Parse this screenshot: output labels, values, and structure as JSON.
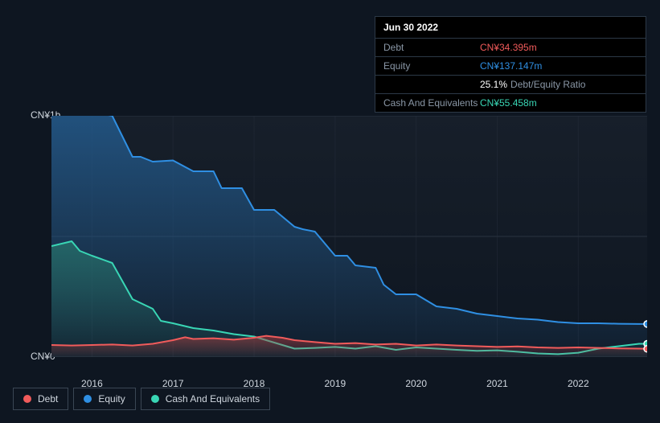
{
  "panel": {
    "date": "Jun 30 2022",
    "rows": [
      {
        "label": "Debt",
        "value": "CN¥34.395m",
        "color": "#f15b5b"
      },
      {
        "label": "Equity",
        "value": "CN¥137.147m",
        "color": "#2f8fe3"
      },
      {
        "label": "",
        "value": "25.1%",
        "suffix": "Debt/Equity Ratio",
        "color": "#ffffff"
      },
      {
        "label": "Cash And Equivalents",
        "value": "CN¥55.458m",
        "color": "#39d6b5"
      }
    ]
  },
  "chart": {
    "type": "area",
    "ylim": [
      0,
      1000
    ],
    "y_axis": [
      {
        "v": 1000,
        "label": "CN¥1b"
      },
      {
        "v": 0,
        "label": "CN¥0"
      }
    ],
    "background": "#0e1621",
    "plot_bg_top": "#171f2a",
    "plot_bg_bottom": "#0e1621",
    "grid_color": "#2a3340",
    "x_axis": [
      "2016",
      "2017",
      "2018",
      "2019",
      "2020",
      "2021",
      "2022"
    ],
    "x_range": [
      2015.5,
      2022.85
    ],
    "series": {
      "equity": {
        "color": "#2f8fe3",
        "fill_top": "rgba(35,90,140,0.85)",
        "fill_bottom": "rgba(35,90,140,0.10)",
        "points": [
          [
            2015.5,
            1010
          ],
          [
            2016.1,
            1010
          ],
          [
            2016.25,
            1000
          ],
          [
            2016.5,
            830
          ],
          [
            2016.6,
            830
          ],
          [
            2016.75,
            810
          ],
          [
            2017.0,
            815
          ],
          [
            2017.25,
            770
          ],
          [
            2017.5,
            770
          ],
          [
            2017.6,
            700
          ],
          [
            2017.85,
            700
          ],
          [
            2018.0,
            610
          ],
          [
            2018.25,
            610
          ],
          [
            2018.5,
            540
          ],
          [
            2018.6,
            530
          ],
          [
            2018.75,
            520
          ],
          [
            2019.0,
            420
          ],
          [
            2019.15,
            420
          ],
          [
            2019.25,
            380
          ],
          [
            2019.5,
            370
          ],
          [
            2019.6,
            300
          ],
          [
            2019.75,
            260
          ],
          [
            2020.0,
            260
          ],
          [
            2020.25,
            210
          ],
          [
            2020.5,
            200
          ],
          [
            2020.75,
            180
          ],
          [
            2021.0,
            170
          ],
          [
            2021.25,
            160
          ],
          [
            2021.5,
            155
          ],
          [
            2021.75,
            145
          ],
          [
            2022.0,
            140
          ],
          [
            2022.25,
            140
          ],
          [
            2022.5,
            138
          ],
          [
            2022.75,
            137
          ],
          [
            2022.85,
            137
          ]
        ]
      },
      "cash": {
        "color": "#39d6b5",
        "fill_top": "rgba(40,120,110,0.70)",
        "fill_bottom": "rgba(40,120,110,0.08)",
        "points": [
          [
            2015.5,
            460
          ],
          [
            2015.75,
            480
          ],
          [
            2015.85,
            440
          ],
          [
            2016.0,
            420
          ],
          [
            2016.25,
            390
          ],
          [
            2016.5,
            240
          ],
          [
            2016.75,
            200
          ],
          [
            2016.85,
            150
          ],
          [
            2017.0,
            140
          ],
          [
            2017.25,
            120
          ],
          [
            2017.5,
            110
          ],
          [
            2017.75,
            95
          ],
          [
            2018.0,
            85
          ],
          [
            2018.25,
            60
          ],
          [
            2018.5,
            35
          ],
          [
            2018.75,
            38
          ],
          [
            2019.0,
            42
          ],
          [
            2019.25,
            35
          ],
          [
            2019.5,
            45
          ],
          [
            2019.75,
            30
          ],
          [
            2020.0,
            40
          ],
          [
            2020.25,
            35
          ],
          [
            2020.5,
            30
          ],
          [
            2020.75,
            26
          ],
          [
            2021.0,
            28
          ],
          [
            2021.25,
            22
          ],
          [
            2021.5,
            15
          ],
          [
            2021.75,
            12
          ],
          [
            2022.0,
            18
          ],
          [
            2022.25,
            35
          ],
          [
            2022.5,
            45
          ],
          [
            2022.75,
            55
          ],
          [
            2022.85,
            55
          ]
        ]
      },
      "debt": {
        "color": "#f15b5b",
        "fill_top": "rgba(180,60,60,0.55)",
        "fill_bottom": "rgba(180,60,60,0.05)",
        "points": [
          [
            2015.5,
            50
          ],
          [
            2015.75,
            48
          ],
          [
            2016.0,
            50
          ],
          [
            2016.25,
            52
          ],
          [
            2016.5,
            48
          ],
          [
            2016.75,
            55
          ],
          [
            2017.0,
            70
          ],
          [
            2017.15,
            82
          ],
          [
            2017.25,
            75
          ],
          [
            2017.5,
            78
          ],
          [
            2017.75,
            72
          ],
          [
            2018.0,
            80
          ],
          [
            2018.15,
            88
          ],
          [
            2018.35,
            80
          ],
          [
            2018.5,
            70
          ],
          [
            2018.75,
            62
          ],
          [
            2019.0,
            55
          ],
          [
            2019.25,
            58
          ],
          [
            2019.5,
            52
          ],
          [
            2019.75,
            55
          ],
          [
            2020.0,
            48
          ],
          [
            2020.25,
            52
          ],
          [
            2020.5,
            48
          ],
          [
            2020.75,
            45
          ],
          [
            2021.0,
            42
          ],
          [
            2021.25,
            44
          ],
          [
            2021.5,
            40
          ],
          [
            2021.75,
            38
          ],
          [
            2022.0,
            40
          ],
          [
            2022.25,
            38
          ],
          [
            2022.5,
            36
          ],
          [
            2022.75,
            35
          ],
          [
            2022.85,
            34
          ]
        ]
      }
    },
    "endpoint_marker_x": 2022.85
  },
  "legend": [
    {
      "key": "debt",
      "label": "Debt",
      "color": "#f15b5b"
    },
    {
      "key": "equity",
      "label": "Equity",
      "color": "#2f8fe3"
    },
    {
      "key": "cash",
      "label": "Cash And Equivalents",
      "color": "#39d6b5"
    }
  ]
}
